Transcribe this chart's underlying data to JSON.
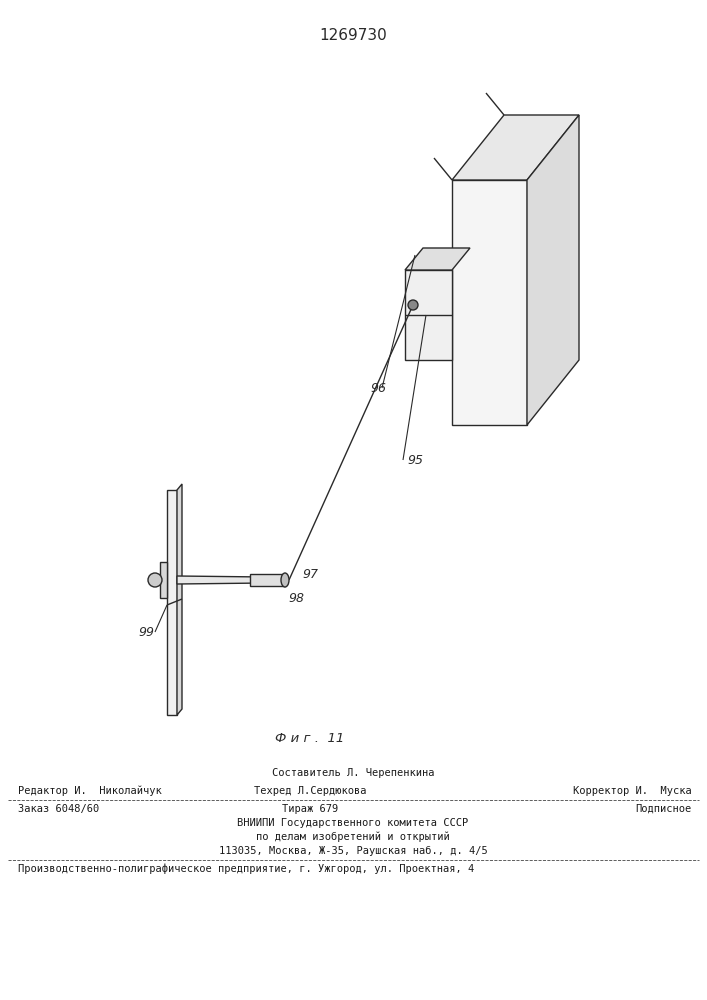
{
  "patent_number": "1269730",
  "fig_label": "Ф и г .  11",
  "bg_color": "#ffffff",
  "line_color": "#2a2a2a",
  "footer_line1_center": "Составитель Л. Черепенкина",
  "footer_line2_left": "Редактор И.  Николайчук",
  "footer_line2_center": "Техред Л.Сердюкова",
  "footer_line2_right": "Корректор И.  Муска",
  "footer_line3_left": "Заказ 6048/60",
  "footer_line3_center": "Тираж 679",
  "footer_line3_right": "Подписное",
  "footer_line4": "ВНИИПИ Государственного комитета СССР",
  "footer_line5": "по делам изобретений и открытий",
  "footer_line6": "113035, Москва, Ж-35, Раушская наб., д. 4/5",
  "footer_line7": "Производственно-полиграфическое предприятие, г. Ужгород, ул. Проектная, 4"
}
